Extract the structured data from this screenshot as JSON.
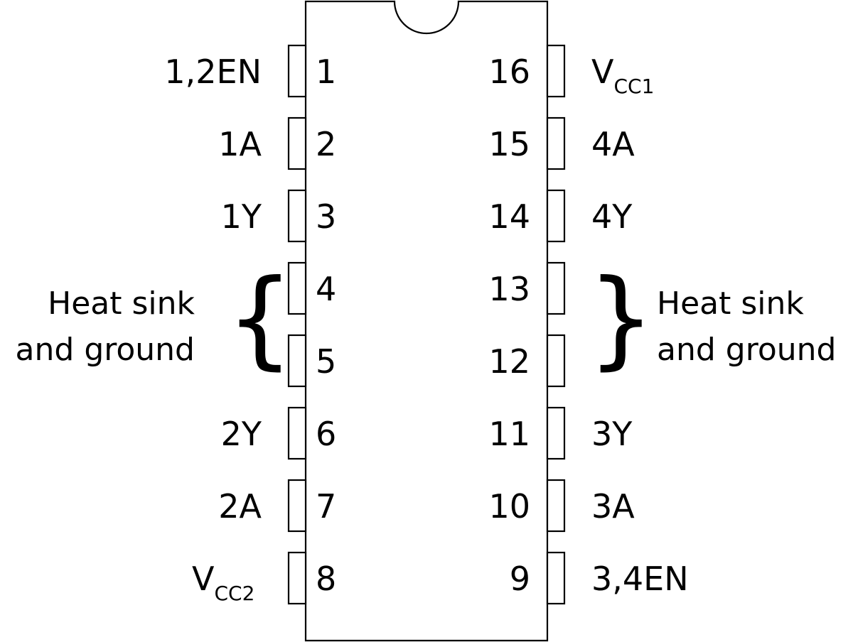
{
  "chip": {
    "left_pins": [
      {
        "number": "1",
        "label": "1,2EN"
      },
      {
        "number": "2",
        "label": "1A"
      },
      {
        "number": "3",
        "label": "1Y"
      },
      {
        "number": "4",
        "label": ""
      },
      {
        "number": "5",
        "label": ""
      },
      {
        "number": "6",
        "label": "2Y"
      },
      {
        "number": "7",
        "label": "2A"
      },
      {
        "number": "8",
        "label_main": "V",
        "label_sub": "CC2"
      }
    ],
    "right_pins": [
      {
        "number": "16",
        "label_main": "V",
        "label_sub": "CC1"
      },
      {
        "number": "15",
        "label": "4A"
      },
      {
        "number": "14",
        "label": "4Y"
      },
      {
        "number": "13",
        "label": ""
      },
      {
        "number": "12",
        "label": ""
      },
      {
        "number": "11",
        "label": "3Y"
      },
      {
        "number": "10",
        "label": "3A"
      },
      {
        "number": "9",
        "label": "3,4EN"
      }
    ],
    "heat_sink_left": {
      "line1": "Heat sink",
      "line2": "and ground",
      "brace": "{"
    },
    "heat_sink_right": {
      "line1": "Heat sink",
      "line2": "and ground",
      "brace": "}"
    }
  }
}
